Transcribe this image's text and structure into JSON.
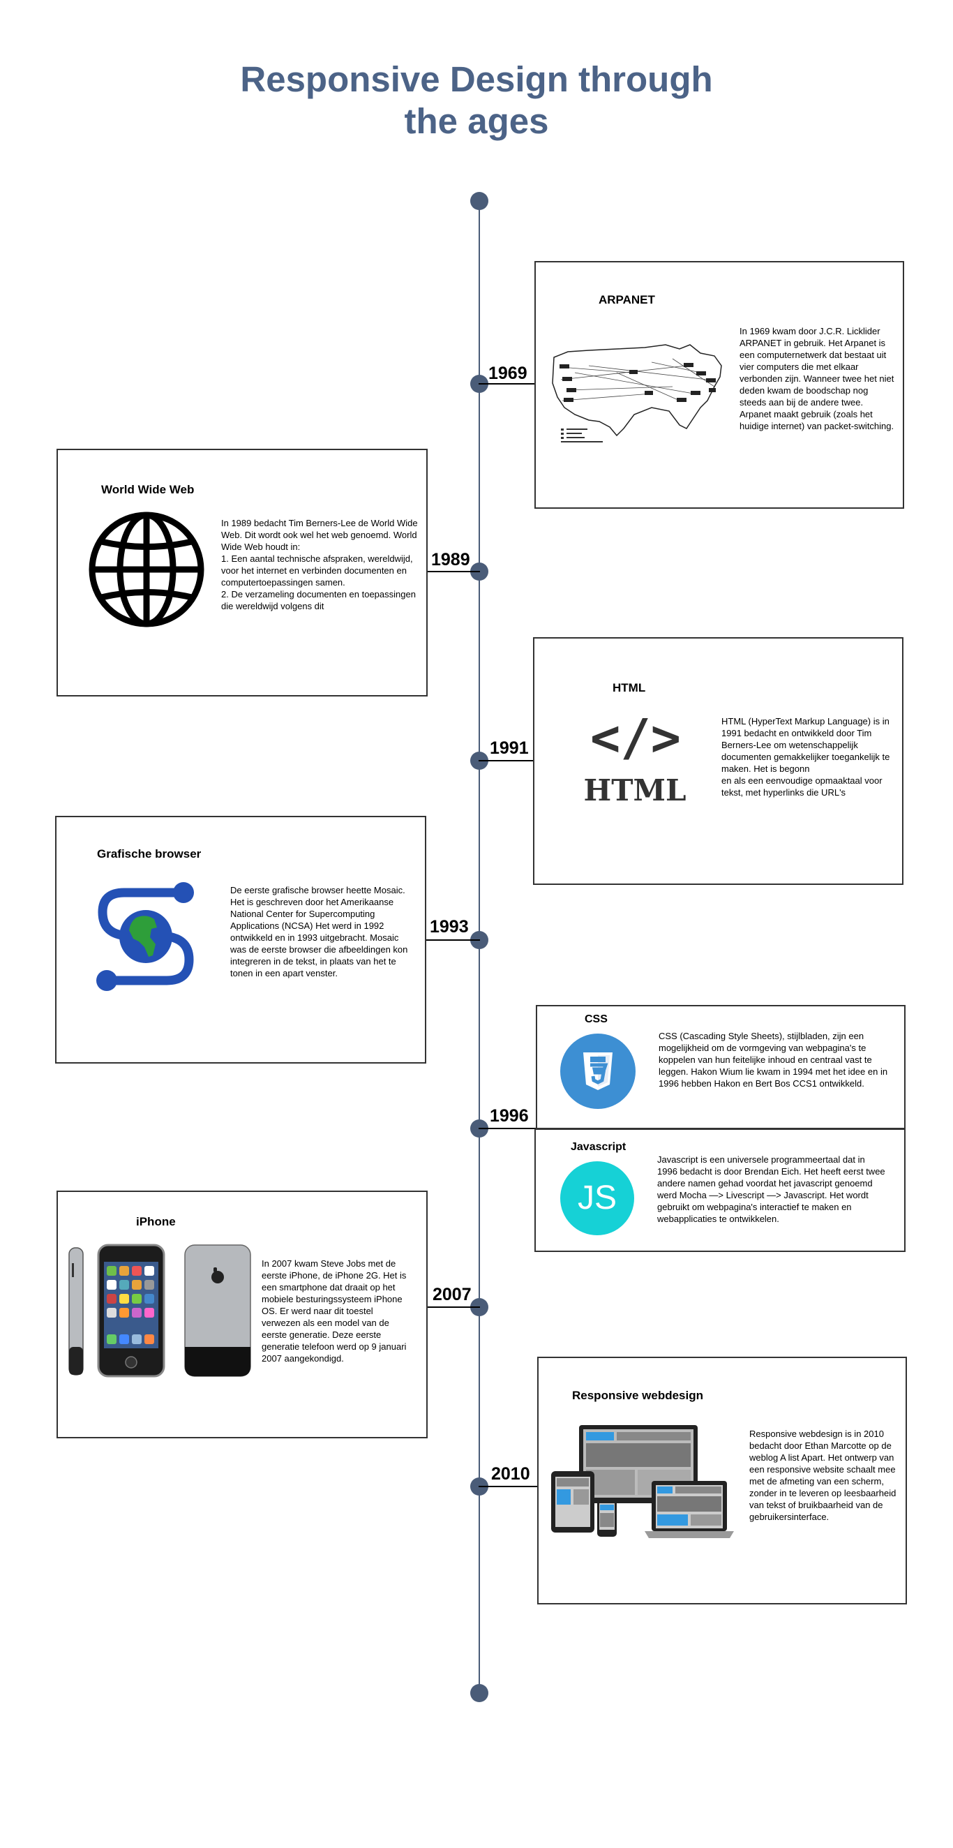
{
  "page": {
    "title_line1": "Responsive Design through",
    "title_line2": "the ages"
  },
  "entries": [
    {
      "year": "1969",
      "title": "ARPANET",
      "text": "In 1969 kwam door J.C.R. Licklider ARPANET in gebruik. Het Arpanet is een computernetwerk dat bestaat uit vier computers die met elkaar verbonden zijn. Wanneer twee het niet deden kwam de boodschap nog steeds aan bij de andere twee. Arpanet maakt gebruik (zoals het huidige internet) van packet-switching."
    },
    {
      "year": "1989",
      "title": "World Wide Web",
      "text": "In 1989 bedacht Tim Berners-Lee de World Wide Web. Dit wordt ook wel het web genoemd. World Wide Web houdt in:\n1. Een aantal technische afspraken, wereldwijd, voor het internet en verbinden documenten en computertoepassingen samen.\n2. De verzameling documenten en toepassingen die wereldwijd volgens dit"
    },
    {
      "year": "1991",
      "title": "HTML",
      "text": "HTML (HyperText Markup Language) is in 1991 bedacht en ontwikkeld door Tim Berners-Lee om wetenschappelijk documenten gemakkelijker toegankelijk te maken. Het is begonn\nen als een eenvoudige opmaaktaal voor tekst, met hyperlinks die URL's"
    },
    {
      "year": "1993",
      "title": "Grafische browser",
      "text": "De eerste grafische browser heette Mosaic. Het is geschreven door het Amerikaanse National Center for Supercomputing Applications (NCSA) Het werd in 1992 ontwikkeld en in 1993 uitgebracht. Mosaic was de eerste browser die afbeeldingen kon integreren in de tekst, in plaats van het te tonen in een apart venster."
    },
    {
      "year": "1996",
      "title": "CSS",
      "text": "CSS (Cascading Style Sheets), stijlbladen, zijn een mogelijkheid om de vormgeving van webpagina's te koppelen van hun feitelijke inhoud en centraal vast te leggen. Hakon Wium lie kwam in 1994 met het idee en in 1996 hebben Hakon en Bert Bos CCS1 ontwikkeld."
    },
    {
      "year": "",
      "title": "Javascript",
      "text": "Javascript is een universele programmeertaal dat in 1996 bedacht is door Brendan Eich. Het heeft eerst twee andere namen gehad voordat het javascript genoemd werd Mocha —> Livescript —> Javascript. Het wordt gebruikt om webpagina's interactief te maken en webapplicaties te ontwikkelen."
    },
    {
      "year": "2007",
      "title": "iPhone",
      "text": "In 2007 kwam Steve Jobs met de eerste iPhone, de iPhone 2G. Het is een smartphone dat draait op het mobiele besturingssysteem iPhone OS. Er werd naar dit toestel verwezen als een model van de eerste generatie. Deze eerste generatie telefoon werd op 9 januari 2007 aangekondigd."
    },
    {
      "year": "2010",
      "title": "Responsive webdesign",
      "text": "Responsive webdesign is in 2010 bedacht door Ethan Marcotte op de weblog A list Apart. Het ontwerp van een responsive website schaalt mee met de afmeting van een scherm, zonder in te leveren op leesbaarheid van tekst of bruikbaarheid van de gebruikersinterface."
    }
  ],
  "icons": {
    "arpanet_map": "arpanet-map-icon",
    "globe": "globe-icon",
    "html_logo_text": "HTML",
    "html_code_glyph": "</>",
    "css_badge": "CSS",
    "js_badge": "JS",
    "mosaic": "mosaic-browser-icon",
    "iphone": "iphone-icon",
    "responsive": "responsive-devices-icon"
  },
  "colors": {
    "title": "#4c6387",
    "axis": "#4a5c78",
    "css": "#3d8fd3",
    "js": "#16d1d6",
    "mosaic_blue": "#2451b5"
  }
}
